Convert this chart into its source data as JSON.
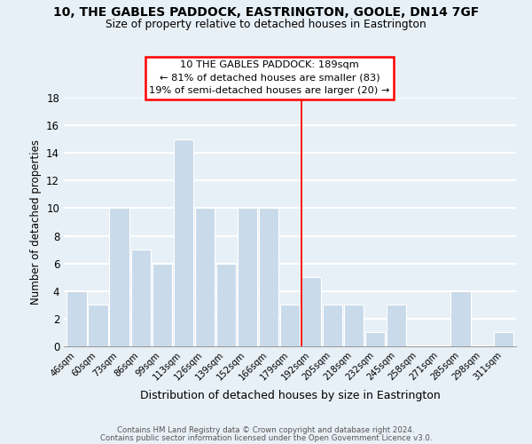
{
  "title": "10, THE GABLES PADDOCK, EASTRINGTON, GOOLE, DN14 7GF",
  "subtitle": "Size of property relative to detached houses in Eastrington",
  "xlabel": "Distribution of detached houses by size in Eastrington",
  "ylabel": "Number of detached properties",
  "bar_labels": [
    "46sqm",
    "60sqm",
    "73sqm",
    "86sqm",
    "99sqm",
    "113sqm",
    "126sqm",
    "139sqm",
    "152sqm",
    "166sqm",
    "179sqm",
    "192sqm",
    "205sqm",
    "218sqm",
    "232sqm",
    "245sqm",
    "258sqm",
    "271sqm",
    "285sqm",
    "298sqm",
    "311sqm"
  ],
  "bar_values": [
    4,
    3,
    10,
    7,
    6,
    15,
    10,
    6,
    10,
    10,
    3,
    5,
    3,
    3,
    1,
    3,
    0,
    0,
    4,
    0,
    1
  ],
  "bar_color": "#c9daea",
  "bar_edge_color": "#ffffff",
  "ylim": [
    0,
    18
  ],
  "yticks": [
    0,
    2,
    4,
    6,
    8,
    10,
    12,
    14,
    16,
    18
  ],
  "property_line_label": "10 THE GABLES PADDOCK: 189sqm",
  "annotation_line1": "← 81% of detached houses are smaller (83)",
  "annotation_line2": "19% of semi-detached houses are larger (20) →",
  "footer1": "Contains HM Land Registry data © Crown copyright and database right 2024.",
  "footer2": "Contains public sector information licensed under the Open Government Licence v3.0.",
  "background_color": "#e8f0f7",
  "plot_bg_color": "#e8f0f7",
  "grid_color": "#ffffff"
}
